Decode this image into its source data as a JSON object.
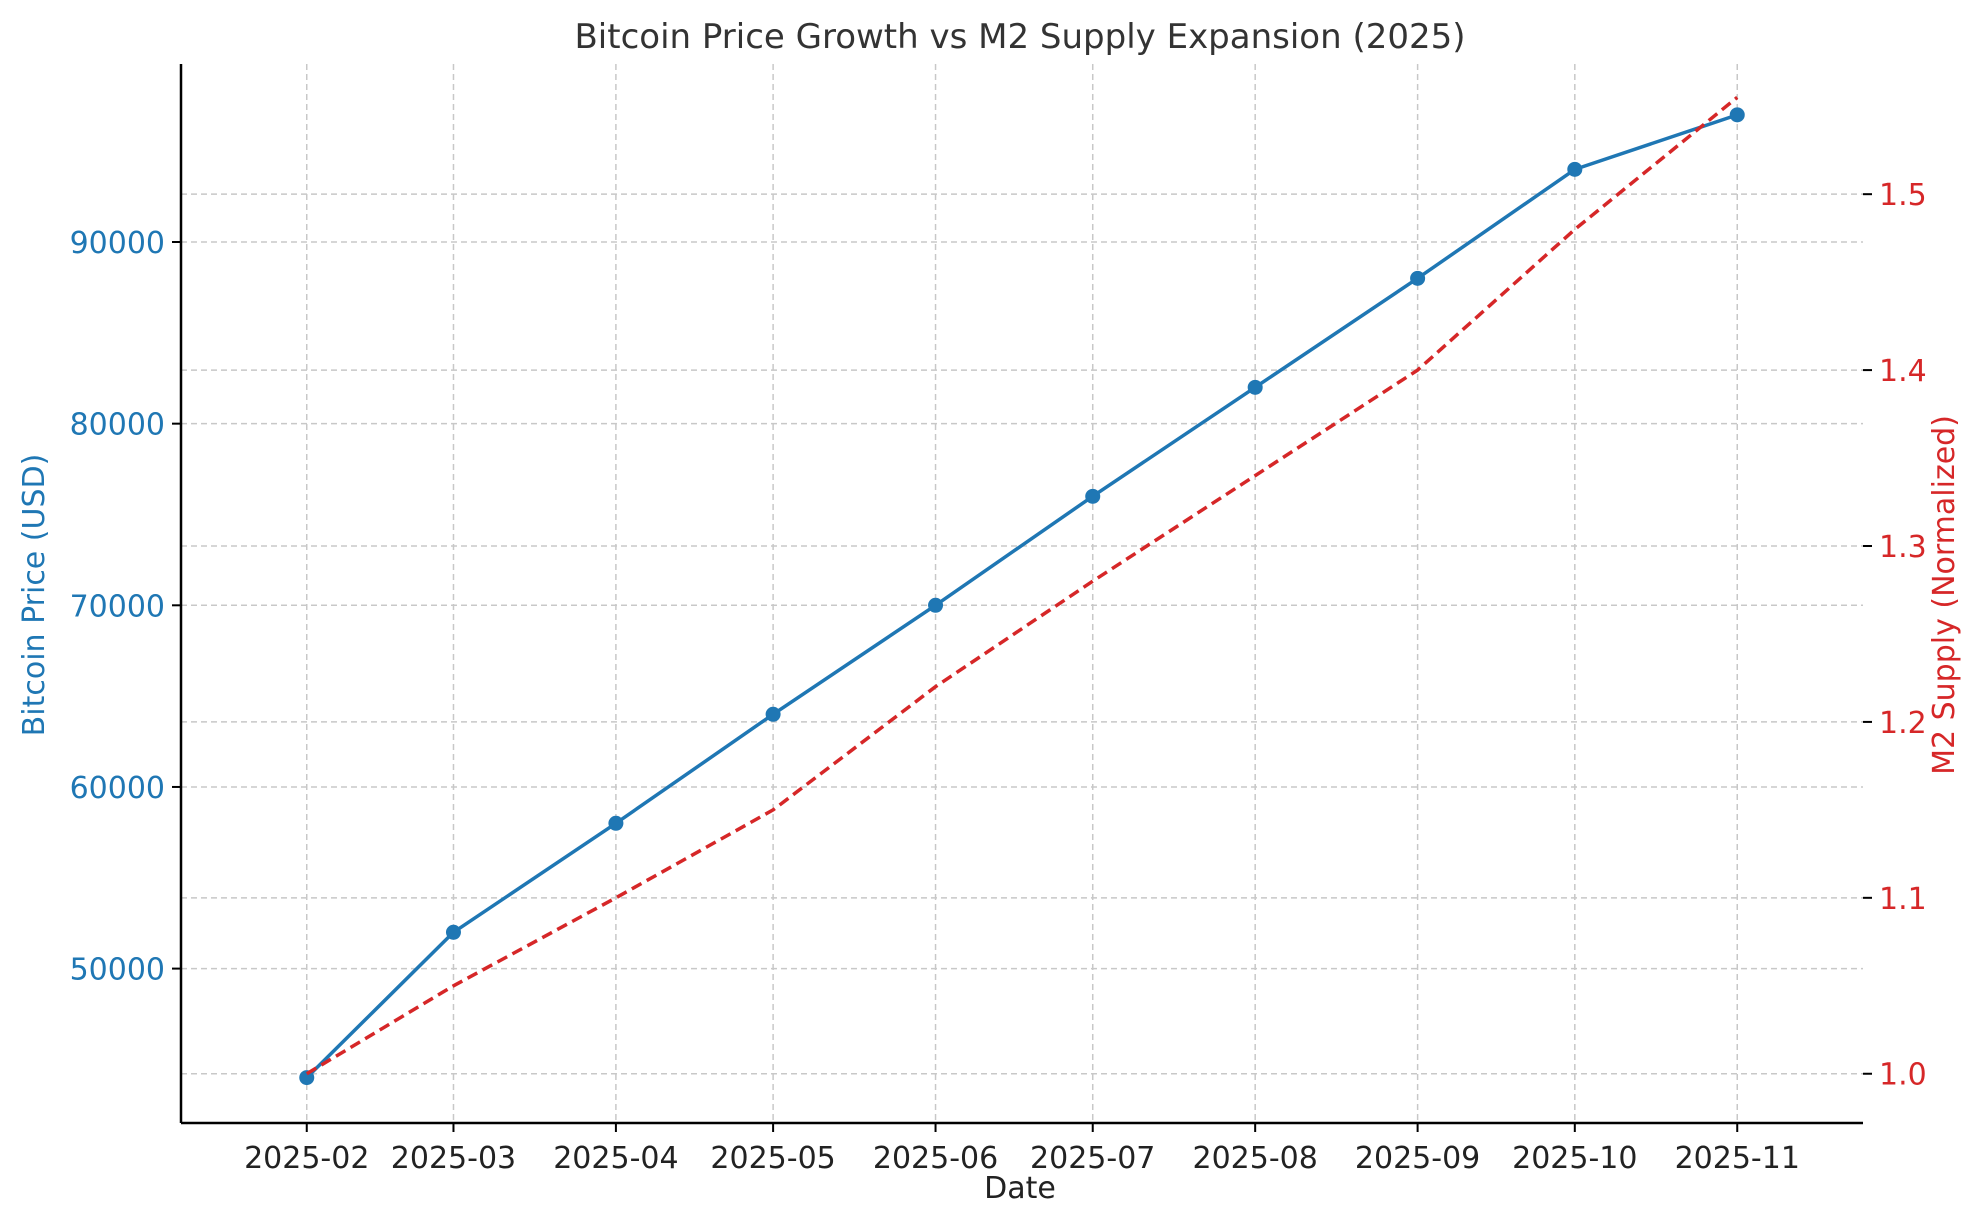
{
  "chart_data": {
    "type": "line",
    "title": "Bitcoin Price Growth vs M2 Supply Expansion (2025)",
    "xlabel": "Date",
    "ylabel_left": "Bitcoin Price (USD)",
    "ylabel_right": "M2 Supply (Normalized)",
    "x_tick_labels": [
      "2025-02",
      "2025-03",
      "2025-04",
      "2025-05",
      "2025-06",
      "2025-07",
      "2025-08",
      "2025-09",
      "2025-10",
      "2025-11"
    ],
    "x": [
      "2025-01-31",
      "2025-02-28",
      "2025-03-31",
      "2025-04-30",
      "2025-05-31",
      "2025-06-30",
      "2025-07-31",
      "2025-08-31",
      "2025-09-30",
      "2025-10-31"
    ],
    "y_left_ticks": [
      50000,
      60000,
      70000,
      80000,
      90000
    ],
    "y_right_ticks": [
      1.0,
      1.1,
      1.2,
      1.3,
      1.4,
      1.5
    ],
    "ylim_left": [
      41500,
      99800
    ],
    "ylim_right": [
      0.972,
      1.574
    ],
    "grid": true,
    "series": [
      {
        "values": [
          44000,
          52000,
          58000,
          64000,
          70000,
          76000,
          82000,
          88000,
          94000,
          97000
        ],
        "axis": "left",
        "color": "#1f77b4",
        "style": "solid",
        "marker": "circle"
      },
      {
        "values": [
          1.0,
          1.05,
          1.1,
          1.15,
          1.22,
          1.28,
          1.34,
          1.4,
          1.48,
          1.555
        ],
        "axis": "right",
        "color": "#d62728",
        "style": "dashed",
        "marker": "none"
      }
    ]
  }
}
